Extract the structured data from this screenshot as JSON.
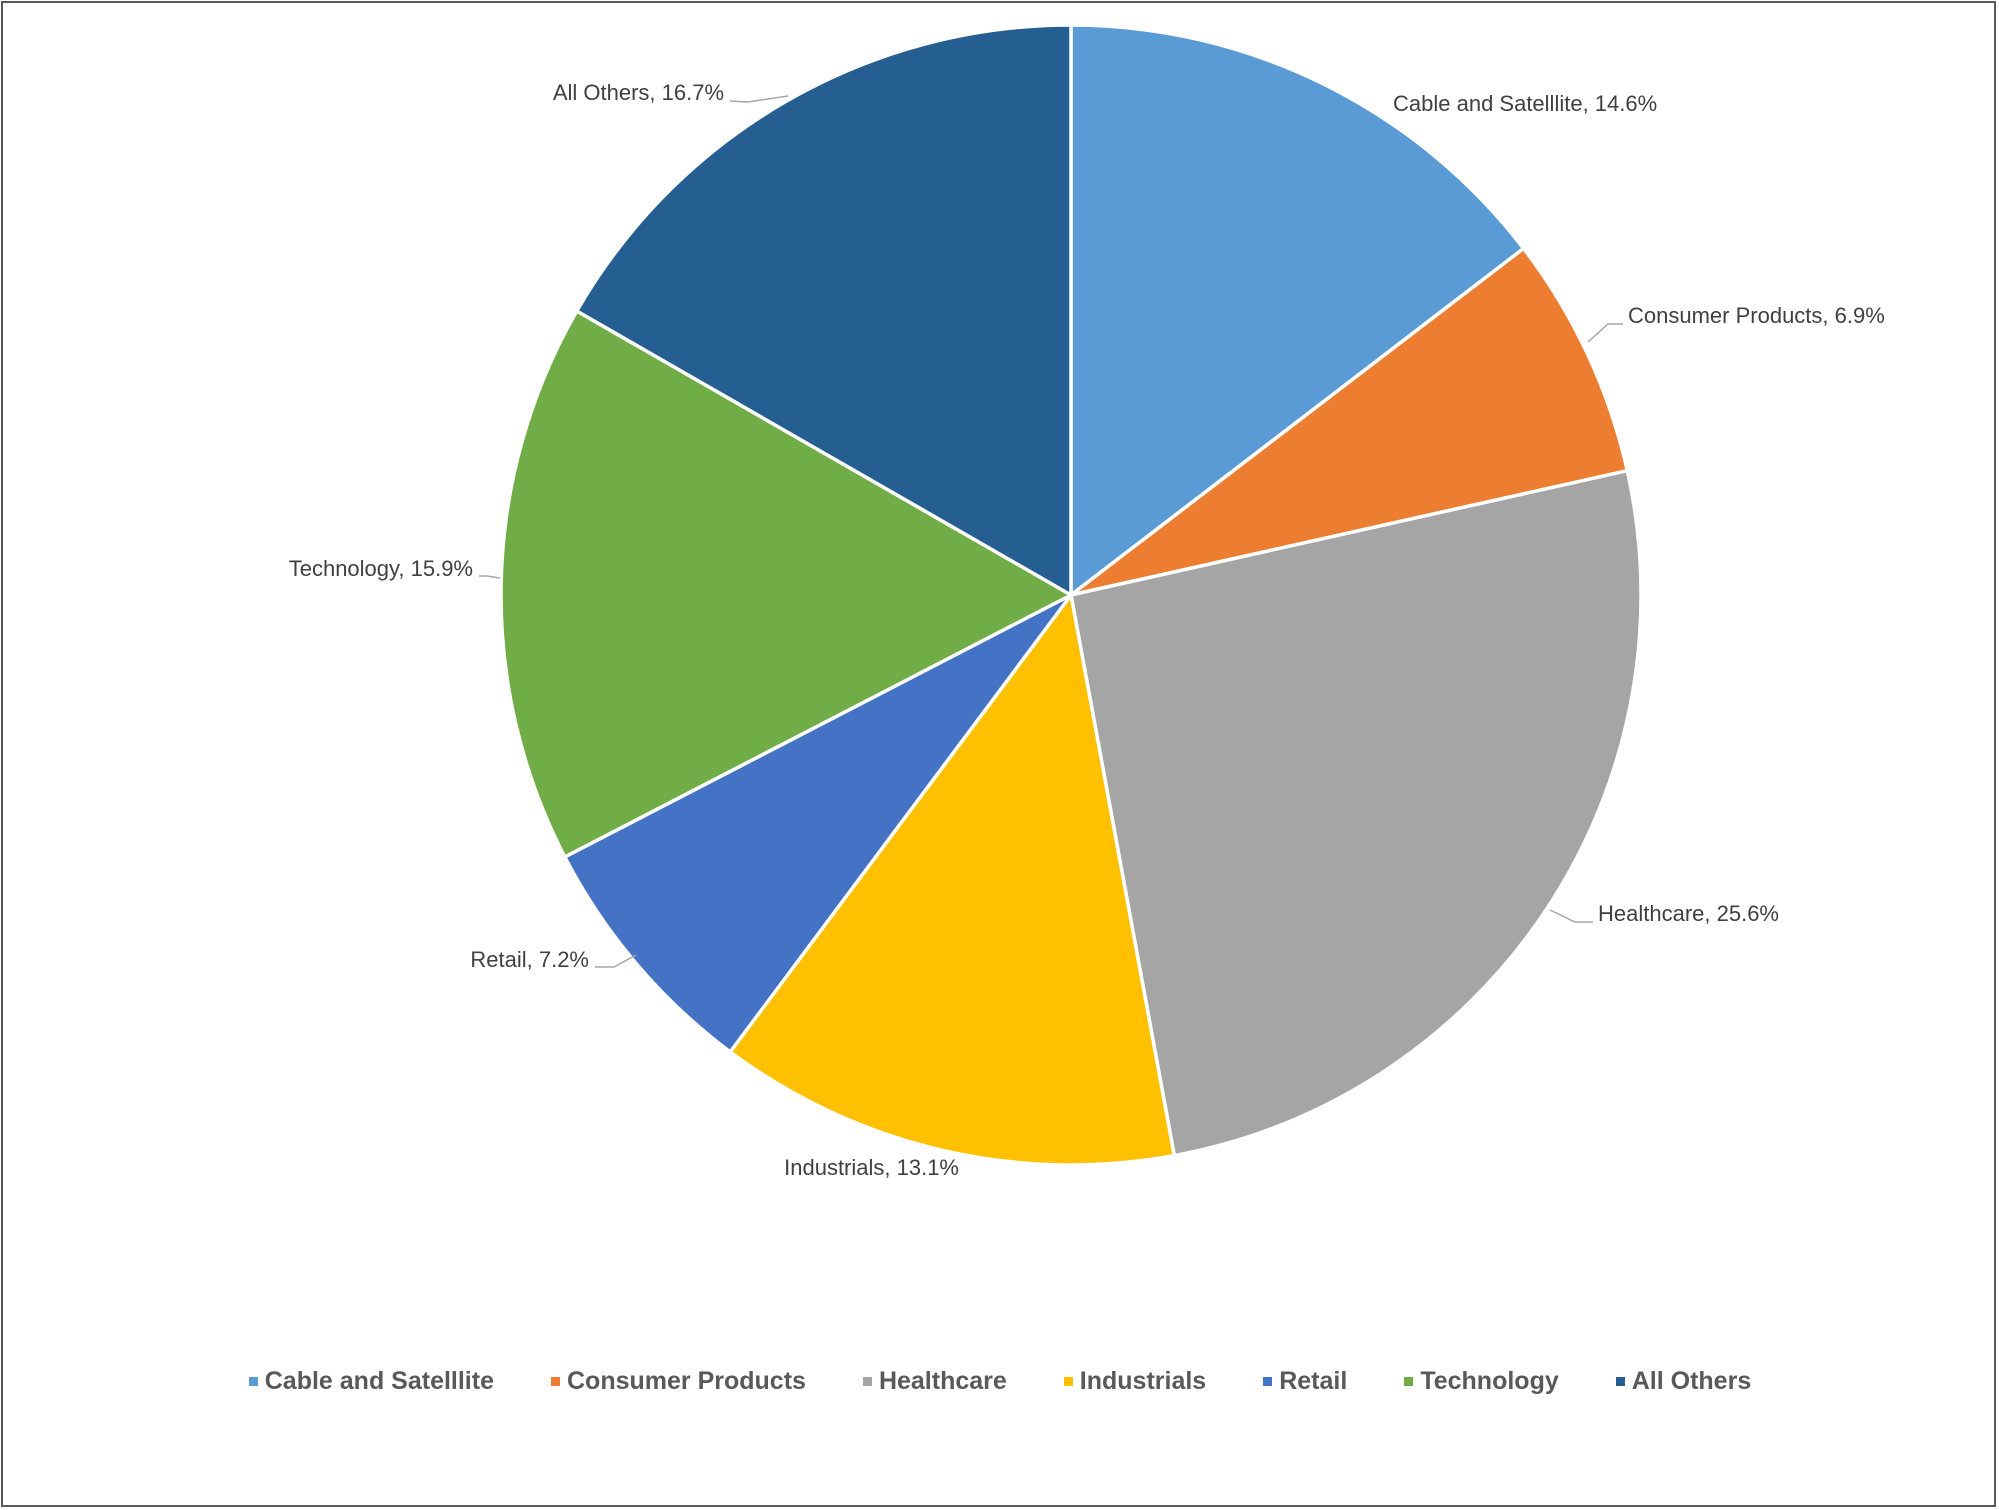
{
  "chart_data": {
    "type": "pie",
    "categories": [
      "Cable and Satelllite",
      "Consumer Products",
      "Healthcare",
      "Industrials",
      "Retail",
      "Technology",
      "All Others"
    ],
    "values": [
      14.6,
      6.9,
      25.6,
      13.1,
      7.2,
      15.9,
      16.7
    ],
    "value_unit": "%",
    "data_labels": [
      "Cable and Satelllite, 14.6%",
      "Consumer Products, 6.9%",
      "Healthcare, 25.6%",
      "Industrials, 13.1%",
      "Retail, 7.2%",
      "Technology, 15.9%",
      "All Others, 16.7%"
    ],
    "colors": [
      "#5b9bd5",
      "#ed7d31",
      "#a5a5a5",
      "#ffc000",
      "#4472c4",
      "#70ad47",
      "#255e91"
    ],
    "start_angle": "12 o'clock",
    "direction": "clockwise",
    "legend_position": "bottom",
    "title": ""
  },
  "legend": {
    "items": [
      {
        "label": "Cable and Satelllite",
        "color": "#5b9bd5"
      },
      {
        "label": "Consumer Products",
        "color": "#ed7d31"
      },
      {
        "label": "Healthcare",
        "color": "#a5a5a5"
      },
      {
        "label": "Industrials",
        "color": "#ffc000"
      },
      {
        "label": "Retail",
        "color": "#4472c4"
      },
      {
        "label": "Technology",
        "color": "#70ad47"
      },
      {
        "label": "All Others",
        "color": "#255e91"
      }
    ]
  }
}
